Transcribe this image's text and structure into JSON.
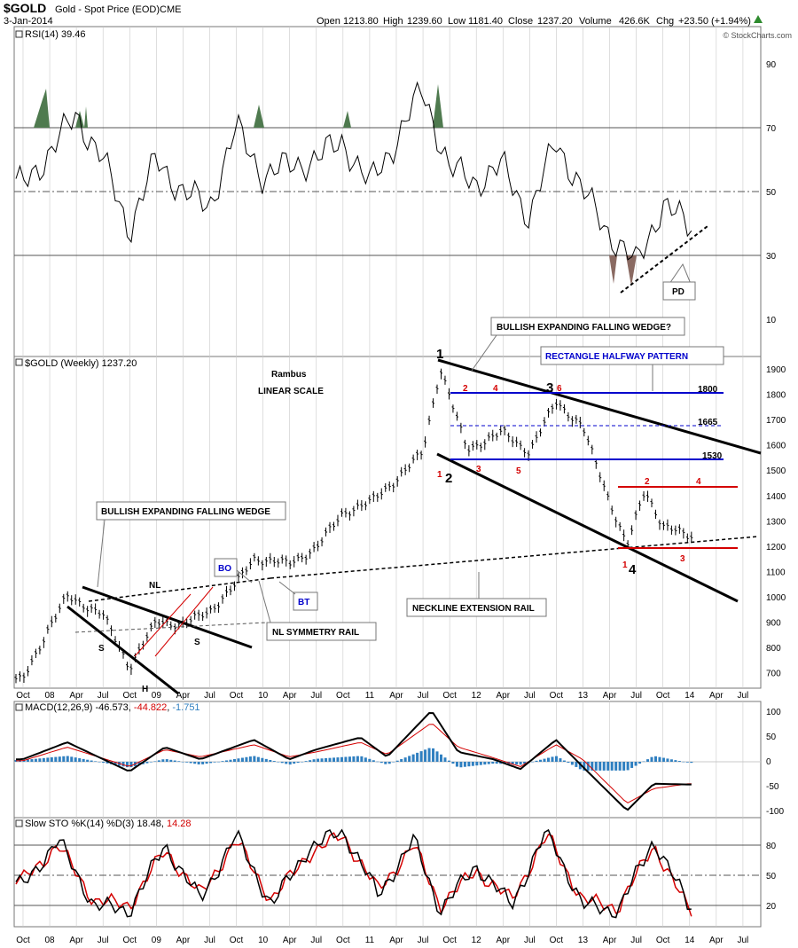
{
  "header": {
    "symbol": "$GOLD",
    "description": "Gold - Spot Price (EOD)",
    "exchange": "CME",
    "date": "3-Jan-2014",
    "open_label": "Open",
    "open": "1213.80",
    "high_label": "High",
    "high": "1239.60",
    "low_label": "Low",
    "low": "1181.40",
    "close_label": "Close",
    "close": "1237.20",
    "volume_label": "Volume",
    "volume": "426.6K",
    "chg_label": "Chg",
    "chg": "+23.50 (+1.94%)",
    "chg_arrow_icon": "up-arrow-icon",
    "watermark": "© StockCharts.com"
  },
  "colors": {
    "grid": "#c8c8c8",
    "rsi_overbought": "#4f7a4f",
    "rsi_oversold": "#8a6a62",
    "blue_line": "#0000cc",
    "red_line": "#d40000",
    "macd_hist": "#2f7fc0",
    "macd_signal": "#d40000"
  },
  "x_axis_labels": [
    "Oct",
    "08",
    "Apr",
    "Jul",
    "Oct",
    "09",
    "Apr",
    "Jul",
    "Oct",
    "10",
    "Apr",
    "Jul",
    "Oct",
    "11",
    "Apr",
    "Jul",
    "Oct",
    "12",
    "Apr",
    "Jul",
    "Oct",
    "13",
    "Apr",
    "Jul",
    "Oct",
    "14",
    "Apr",
    "Jul"
  ],
  "rsi": {
    "label": "RSI(14) 39.46",
    "ticks": [
      "90",
      "70",
      "50",
      "30",
      "10"
    ],
    "annotation_pd": "PD"
  },
  "price": {
    "label": "$GOLD (Weekly) 1237.20",
    "author": "Rambus",
    "scale_note": "LINEAR SCALE",
    "ticks": [
      "1900",
      "1800",
      "1700",
      "1600",
      "1500",
      "1400",
      "1300",
      "1200",
      "1100",
      "1000",
      "900",
      "800",
      "700"
    ],
    "annotations": {
      "bullish_wedge_top": "BULLISH EXPANDING FALLING WEDGE?",
      "rectangle": "RECTANGLE HALFWAY PATTERN",
      "bullish_wedge_left": "BULLISH EXPANDING FALLING WEDGE",
      "bo": "BO",
      "bt": "BT",
      "nl": "NL",
      "nl_symmetry": "NL SYMMETRY RAIL",
      "neckline_ext": "NECKLINE EXTENSION RAIL",
      "s_left": "S",
      "s_right": "S",
      "h": "H",
      "level_1800": "1800",
      "level_1665": "1665",
      "level_1530": "1530"
    },
    "wave_labels": [
      "1",
      "2",
      "3",
      "4"
    ],
    "red_labels_rect": [
      "2",
      "4",
      "6",
      "1",
      "3",
      "5"
    ],
    "red_labels_lower": [
      "2",
      "4",
      "1",
      "3"
    ]
  },
  "macd": {
    "label_prefix": "MACD(12,26,9)",
    "macd_value": "-46.573",
    "signal_value": "-44.822",
    "hist_value": "-1.751",
    "ticks": [
      "100",
      "50",
      "0",
      "-50",
      "-100"
    ]
  },
  "sto": {
    "label_prefix": "Slow STO %K(14) %D(3)",
    "k_value": "18.48",
    "d_value": "14.28",
    "ticks": [
      "80",
      "50",
      "20"
    ]
  },
  "chart_data": [
    {
      "type": "line",
      "title": "RSI(14)",
      "x": [
        "2007-10",
        "2008-01",
        "2008-04",
        "2008-07",
        "2008-10",
        "2009-01",
        "2009-04",
        "2009-07",
        "2009-10",
        "2010-01",
        "2010-04",
        "2010-07",
        "2010-10",
        "2011-01",
        "2011-04",
        "2011-07",
        "2011-10",
        "2012-01",
        "2012-04",
        "2012-07",
        "2012-10",
        "2013-01",
        "2013-04",
        "2013-07",
        "2013-10",
        "2014-01"
      ],
      "values": [
        52,
        62,
        74,
        60,
        38,
        60,
        50,
        45,
        70,
        55,
        58,
        60,
        66,
        52,
        66,
        82,
        57,
        53,
        58,
        42,
        66,
        50,
        37,
        27,
        46,
        39
      ],
      "ylim": [
        0,
        100
      ],
      "reference_lines": [
        70,
        50,
        30
      ]
    },
    {
      "type": "line",
      "title": "$GOLD (Weekly)",
      "x": [
        "2007-10",
        "2008-01",
        "2008-03",
        "2008-07",
        "2008-10",
        "2009-01",
        "2009-04",
        "2009-07",
        "2009-10",
        "2009-12",
        "2010-04",
        "2010-07",
        "2010-10",
        "2011-01",
        "2011-04",
        "2011-07",
        "2011-09",
        "2011-12",
        "2012-04",
        "2012-07",
        "2012-10",
        "2013-01",
        "2013-04",
        "2013-06",
        "2013-08",
        "2013-10",
        "2014-01"
      ],
      "values": [
        670,
        880,
        1000,
        930,
        720,
        900,
        890,
        940,
        1050,
        1150,
        1130,
        1190,
        1330,
        1370,
        1460,
        1570,
        1900,
        1580,
        1650,
        1570,
        1770,
        1670,
        1380,
        1200,
        1420,
        1280,
        1237
      ],
      "ylim": [
        650,
        1950
      ],
      "horizontal_levels": [
        1800,
        1665,
        1530,
        1430,
        1185
      ]
    },
    {
      "type": "line",
      "title": "MACD(12,26,9)",
      "x": [
        "2007-10",
        "2008-03",
        "2008-10",
        "2009-02",
        "2009-06",
        "2009-12",
        "2010-04",
        "2010-07",
        "2010-12",
        "2011-03",
        "2011-08",
        "2011-11",
        "2012-03",
        "2012-06",
        "2012-10",
        "2013-01",
        "2013-06",
        "2013-09",
        "2014-01"
      ],
      "series": [
        {
          "name": "MACD",
          "values": [
            5,
            40,
            -20,
            30,
            5,
            45,
            5,
            25,
            50,
            10,
            105,
            20,
            5,
            -15,
            45,
            -10,
            -100,
            -45,
            -46.573
          ]
        },
        {
          "name": "Signal",
          "values": [
            2,
            30,
            -10,
            25,
            10,
            35,
            10,
            20,
            40,
            15,
            80,
            30,
            8,
            -10,
            35,
            5,
            -85,
            -55,
            -44.822
          ]
        }
      ],
      "ylim": [
        -115,
        115
      ]
    },
    {
      "type": "line",
      "title": "Slow STO %K(14) %D(3)",
      "x": [
        "2007-10",
        "2008-02",
        "2008-06",
        "2008-10",
        "2009-02",
        "2009-06",
        "2009-10",
        "2010-02",
        "2010-06",
        "2010-10",
        "2011-02",
        "2011-06",
        "2011-09",
        "2012-01",
        "2012-05",
        "2012-09",
        "2013-01",
        "2013-05",
        "2013-09",
        "2014-01"
      ],
      "series": [
        {
          "name": "%K",
          "values": [
            40,
            85,
            20,
            15,
            80,
            25,
            90,
            20,
            75,
            95,
            30,
            85,
            15,
            60,
            20,
            95,
            20,
            15,
            85,
            18.48
          ]
        },
        {
          "name": "%D",
          "values": [
            45,
            80,
            25,
            20,
            75,
            30,
            85,
            25,
            70,
            90,
            35,
            80,
            20,
            55,
            25,
            90,
            25,
            18,
            80,
            14.28
          ]
        }
      ],
      "ylim": [
        0,
        100
      ],
      "reference_lines": [
        80,
        50,
        20
      ]
    }
  ]
}
